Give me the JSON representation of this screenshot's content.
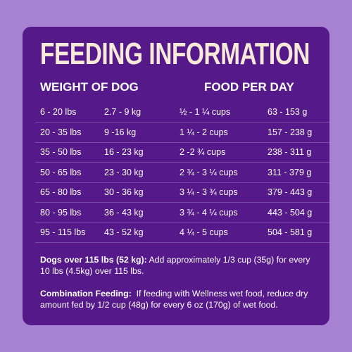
{
  "title": "FEEDING INFORMATION",
  "table": {
    "headers": [
      "WEIGHT OF DOG",
      "FOOD PER DAY"
    ],
    "rows": [
      [
        "6 - 20 lbs",
        "2.7 - 9 kg",
        "½ - 1 ¼ cups",
        "63 - 153 g"
      ],
      [
        "20 - 35 lbs",
        "9 -16 kg",
        "1 ¼ - 2 cups",
        "157 - 238 g"
      ],
      [
        "35 - 50 lbs",
        "16 - 23 kg",
        "2 -2 ¾ cups",
        "238 - 311 g"
      ],
      [
        "50 - 65 lbs",
        "23 - 30 kg",
        "2 ¾ - 3 ¼ cups",
        "311 - 379 g"
      ],
      [
        "65 - 80 lbs",
        "30 - 36 kg",
        "3 ¼ - 3 ¾ cups",
        "379 - 443 g"
      ],
      [
        "80 - 95 lbs",
        "36 - 43 kg",
        "3 ¾ - 4 ¼ cups",
        "443 - 504 g"
      ],
      [
        "95 - 115 lbs",
        "43 - 52 kg",
        "4 ¼ - 5 cups",
        "504 - 581 g"
      ]
    ]
  },
  "notes": [
    {
      "label": "Dogs over 115 lbs (52 kg):",
      "text": "Add approximately 1/3 cup (35g) for every 10 lbs (4.5kg) over 115 lbs."
    },
    {
      "label": "Combination Feeding:",
      "text": "If feeding with Wellness wet food, reduce dry amount fed by 1/2 cup (48g) for every 6 oz (170g) of wet food."
    }
  ]
}
